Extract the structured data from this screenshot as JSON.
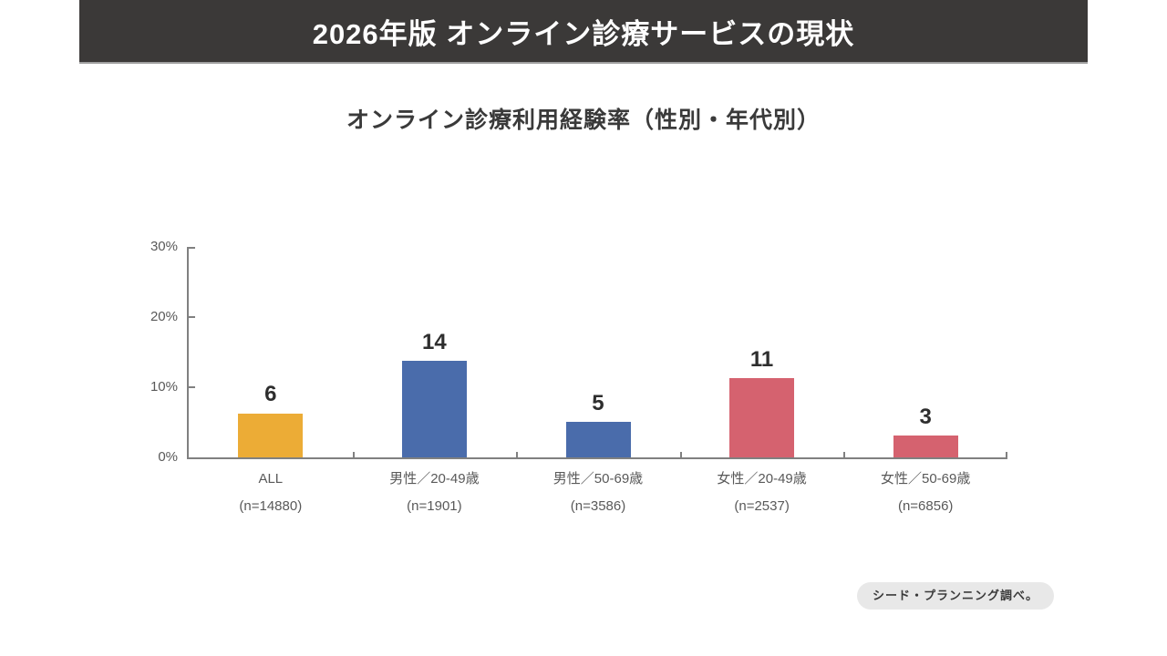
{
  "page": {
    "background": "#ffffff"
  },
  "header": {
    "title": "2026年版 オンライン診療サービスの現状",
    "bg_color": "#3b3938",
    "text_color": "#ffffff"
  },
  "chart_data": {
    "type": "bar",
    "title": "オンライン診療利用経験率（性別・年代別）",
    "categories": [
      "ALL",
      "男性／20-49歳",
      "男性／50-69歳",
      "女性／20-49歳",
      "女性／50-69歳"
    ],
    "sample_sizes": [
      "(n=14880)",
      "(n=1901)",
      "(n=3586)",
      "(n=2537)",
      "(n=6856)"
    ],
    "values": [
      6,
      14,
      5,
      11,
      3
    ],
    "bar_heights_pct": [
      6.3,
      13.8,
      5.1,
      11.3,
      3.1
    ],
    "bar_colors": [
      "#ecac36",
      "#4a6cab",
      "#4a6cab",
      "#d5626f",
      "#d5626f"
    ],
    "xlabel": "",
    "ylabel": "",
    "ylim": [
      0,
      30
    ],
    "yticks": [
      "0%",
      "10%",
      "20%",
      "30%"
    ],
    "ytick_values": [
      0,
      10,
      20,
      30
    ],
    "grid": false,
    "legend": false,
    "axis_color": "#808080",
    "tick_direction": "in"
  },
  "footer": {
    "source_note": "シード・プランニング調べ。"
  }
}
